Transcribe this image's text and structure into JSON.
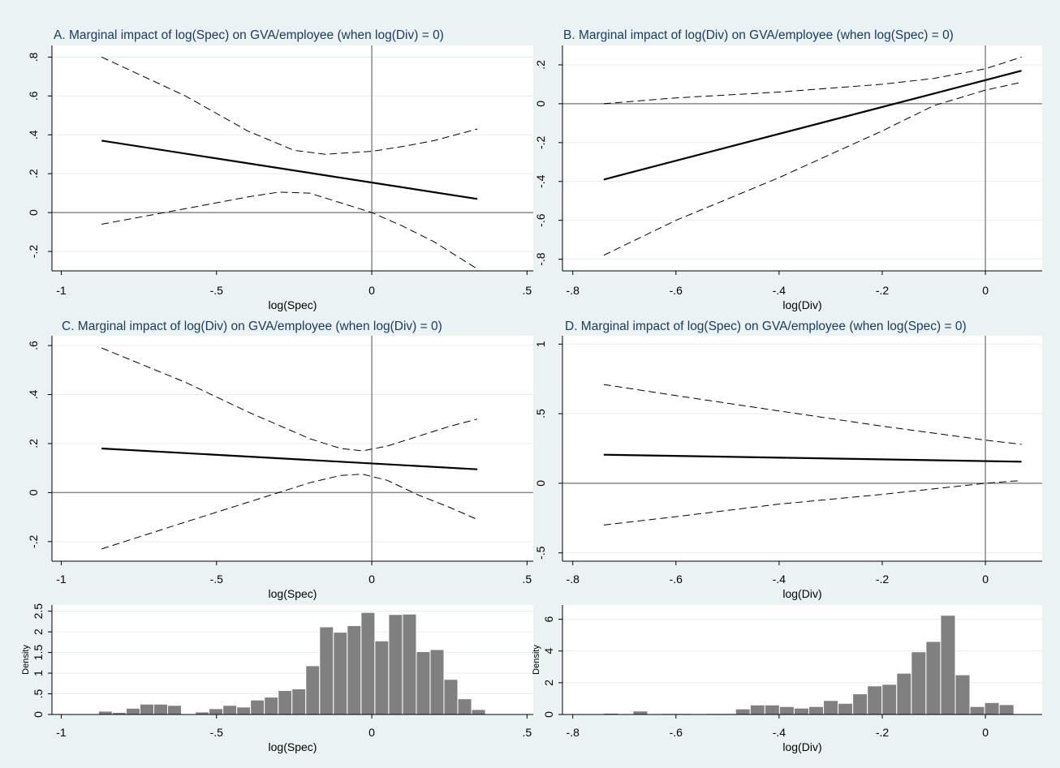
{
  "chart_data": [
    {
      "type": "line",
      "title": "A. Marginal impact of log(Spec) on GVA/employee (when log(Div) = 0)",
      "xlabel": "log(Spec)",
      "ylabel": "",
      "xlim": [
        -1.03,
        0.52
      ],
      "ylim": [
        -0.3,
        0.86
      ],
      "xticks": [
        -1,
        -0.5,
        0,
        0.5
      ],
      "xtick_labels": [
        "-1",
        "-.5",
        "0",
        ".5"
      ],
      "yticks": [
        -0.2,
        0,
        0.2,
        0.4,
        0.6,
        0.8
      ],
      "ytick_labels": [
        "-.2",
        "0",
        ".2",
        ".4",
        ".6",
        ".8"
      ],
      "grid": true,
      "ref_x": 0,
      "ref_y": 0,
      "series": [
        {
          "role": "estimate",
          "x": [
            -0.87,
            0.34
          ],
          "y": [
            0.37,
            0.07
          ]
        },
        {
          "role": "upper",
          "x": [
            -0.87,
            -0.6,
            -0.4,
            -0.25,
            -0.15,
            0,
            0.1,
            0.2,
            0.34
          ],
          "y": [
            0.8,
            0.6,
            0.42,
            0.32,
            0.3,
            0.315,
            0.34,
            0.37,
            0.43
          ]
        },
        {
          "role": "lower",
          "x": [
            -0.87,
            -0.6,
            -0.4,
            -0.3,
            -0.2,
            -0.1,
            0,
            0.1,
            0.2,
            0.34
          ],
          "y": [
            -0.06,
            0.02,
            0.08,
            0.105,
            0.1,
            0.05,
            0.0,
            -0.07,
            -0.15,
            -0.29
          ]
        }
      ]
    },
    {
      "type": "line",
      "title": "B. Marginal impact of log(Div) on GVA/employee (when log(Spec) = 0)",
      "xlabel": "log(Div)",
      "ylabel": "",
      "xlim": [
        -0.82,
        0.11
      ],
      "ylim": [
        -0.86,
        0.3
      ],
      "xticks": [
        -0.8,
        -0.6,
        -0.4,
        -0.2,
        0
      ],
      "xtick_labels": [
        "-.8",
        "-.6",
        "-.4",
        "-.2",
        "0"
      ],
      "yticks": [
        -0.8,
        -0.6,
        -0.4,
        -0.2,
        0,
        0.2
      ],
      "ytick_labels": [
        "-.8",
        "-.6",
        "-.4",
        "-.2",
        "0",
        ".2"
      ],
      "grid": true,
      "ref_x": 0,
      "ref_y": 0,
      "series": [
        {
          "role": "estimate",
          "x": [
            -0.74,
            0.07
          ],
          "y": [
            -0.39,
            0.17
          ]
        },
        {
          "role": "upper",
          "x": [
            -0.74,
            -0.6,
            -0.4,
            -0.2,
            -0.1,
            0,
            0.07
          ],
          "y": [
            0.0,
            0.03,
            0.06,
            0.1,
            0.13,
            0.18,
            0.24
          ]
        },
        {
          "role": "lower",
          "x": [
            -0.74,
            -0.6,
            -0.4,
            -0.2,
            -0.1,
            0,
            0.07
          ],
          "y": [
            -0.78,
            -0.6,
            -0.38,
            -0.14,
            -0.01,
            0.07,
            0.11
          ]
        }
      ]
    },
    {
      "type": "line",
      "title": "C. Marginal impact of log(Div) on GVA/employee (when log(Div) = 0)",
      "xlabel": "log(Spec)",
      "ylabel": "",
      "xlim": [
        -1.03,
        0.52
      ],
      "ylim": [
        -0.28,
        0.64
      ],
      "xticks": [
        -1,
        -0.5,
        0,
        0.5
      ],
      "xtick_labels": [
        "-1",
        "-.5",
        "0",
        ".5"
      ],
      "yticks": [
        -0.2,
        0,
        0.2,
        0.4,
        0.6
      ],
      "ytick_labels": [
        "-.2",
        "0",
        ".2",
        ".4",
        ".6"
      ],
      "grid": true,
      "ref_x": 0,
      "ref_y": 0,
      "series": [
        {
          "role": "estimate",
          "x": [
            -0.87,
            0.34
          ],
          "y": [
            0.18,
            0.095
          ]
        },
        {
          "role": "upper",
          "x": [
            -0.87,
            -0.6,
            -0.4,
            -0.2,
            -0.1,
            -0.03,
            0.05,
            0.15,
            0.25,
            0.34
          ],
          "y": [
            0.59,
            0.45,
            0.33,
            0.22,
            0.18,
            0.17,
            0.19,
            0.23,
            0.27,
            0.3
          ]
        },
        {
          "role": "lower",
          "x": [
            -0.87,
            -0.6,
            -0.4,
            -0.2,
            -0.1,
            -0.03,
            0.05,
            0.15,
            0.25,
            0.34
          ],
          "y": [
            -0.23,
            -0.12,
            -0.04,
            0.04,
            0.07,
            0.075,
            0.05,
            -0.01,
            -0.06,
            -0.11
          ]
        }
      ]
    },
    {
      "type": "line",
      "title": "D. Marginal impact of log(Spec) on GVA/employee (when log(Spec) = 0)",
      "xlabel": "log(Div)",
      "ylabel": "",
      "xlim": [
        -0.82,
        0.11
      ],
      "ylim": [
        -0.56,
        1.06
      ],
      "xticks": [
        -0.8,
        -0.6,
        -0.4,
        -0.2,
        0
      ],
      "xtick_labels": [
        "-.8",
        "-.6",
        "-.4",
        "-.2",
        "0"
      ],
      "yticks": [
        -0.5,
        0,
        0.5,
        1
      ],
      "ytick_labels": [
        "-.5",
        "0",
        ".5",
        "1"
      ],
      "grid": true,
      "ref_x": 0,
      "ref_y": 0,
      "series": [
        {
          "role": "estimate",
          "x": [
            -0.74,
            0.07
          ],
          "y": [
            0.205,
            0.155
          ]
        },
        {
          "role": "upper",
          "x": [
            -0.74,
            -0.6,
            -0.4,
            -0.2,
            0,
            0.07
          ],
          "y": [
            0.71,
            0.63,
            0.52,
            0.41,
            0.31,
            0.28
          ]
        },
        {
          "role": "lower",
          "x": [
            -0.74,
            -0.6,
            -0.4,
            -0.2,
            0,
            0.07
          ],
          "y": [
            -0.3,
            -0.24,
            -0.15,
            -0.08,
            0.0,
            0.02
          ]
        }
      ]
    },
    {
      "type": "bar",
      "title": "",
      "xlabel": "log(Spec)",
      "ylabel": "Density",
      "xlim": [
        -1.03,
        0.52
      ],
      "ylim": [
        0,
        2.65
      ],
      "xticks": [
        -1,
        -0.5,
        0,
        0.5
      ],
      "xtick_labels": [
        "-1",
        "-.5",
        "0",
        ".5"
      ],
      "yticks": [
        0,
        0.5,
        1,
        1.5,
        2,
        2.5
      ],
      "ytick_labels": [
        "0",
        ".5",
        "1",
        "1.5",
        "2",
        "2.5"
      ],
      "grid": true,
      "bin_width": 0.0445,
      "bins_left": [
        -0.88,
        -0.8355,
        -0.791,
        -0.7465,
        -0.702,
        -0.6575,
        -0.613,
        -0.5685,
        -0.524,
        -0.4795,
        -0.435,
        -0.3905,
        -0.346,
        -0.3015,
        -0.257,
        -0.2125,
        -0.168,
        -0.1235,
        -0.079,
        -0.0345,
        0.01,
        0.0545,
        0.099,
        0.1435,
        0.188,
        0.2325,
        0.277,
        0.3215
      ],
      "values": [
        0.08,
        0.05,
        0.15,
        0.25,
        0.25,
        0.22,
        0.0,
        0.06,
        0.14,
        0.22,
        0.18,
        0.35,
        0.42,
        0.58,
        0.62,
        1.18,
        2.12,
        1.99,
        2.15,
        2.47,
        1.78,
        2.42,
        2.43,
        1.52,
        1.57,
        0.85,
        0.38,
        0.12
      ]
    },
    {
      "type": "bar",
      "title": "",
      "xlabel": "log(Div)",
      "ylabel": "Density",
      "xlim": [
        -0.82,
        0.11
      ],
      "ylim": [
        0,
        6.9
      ],
      "xticks": [
        -0.8,
        -0.6,
        -0.4,
        -0.2,
        0
      ],
      "xtick_labels": [
        "-.8",
        "-.6",
        "-.4",
        "-.2",
        "0"
      ],
      "yticks": [
        0,
        2,
        4,
        6
      ],
      "ytick_labels": [
        "0",
        "2",
        "4",
        "6"
      ],
      "grid": true,
      "bin_width": 0.0284,
      "bins_left": [
        -0.74,
        -0.7116,
        -0.6832,
        -0.6548,
        -0.6264,
        -0.598,
        -0.5696,
        -0.5412,
        -0.5128,
        -0.4844,
        -0.456,
        -0.4276,
        -0.3992,
        -0.3708,
        -0.3424,
        -0.314,
        -0.2856,
        -0.2572,
        -0.2288,
        -0.2004,
        -0.172,
        -0.1436,
        -0.1152,
        -0.0868,
        -0.0584,
        -0.03,
        -0.0016,
        0.0268,
        0.0552
      ],
      "values": [
        0.08,
        0.0,
        0.22,
        0.0,
        0.06,
        0.06,
        0.0,
        0.06,
        0.06,
        0.35,
        0.6,
        0.6,
        0.5,
        0.4,
        0.5,
        0.88,
        0.7,
        1.3,
        1.8,
        1.9,
        2.6,
        3.95,
        4.6,
        6.25,
        2.5,
        0.5,
        0.75,
        0.62,
        0.0
      ]
    }
  ]
}
